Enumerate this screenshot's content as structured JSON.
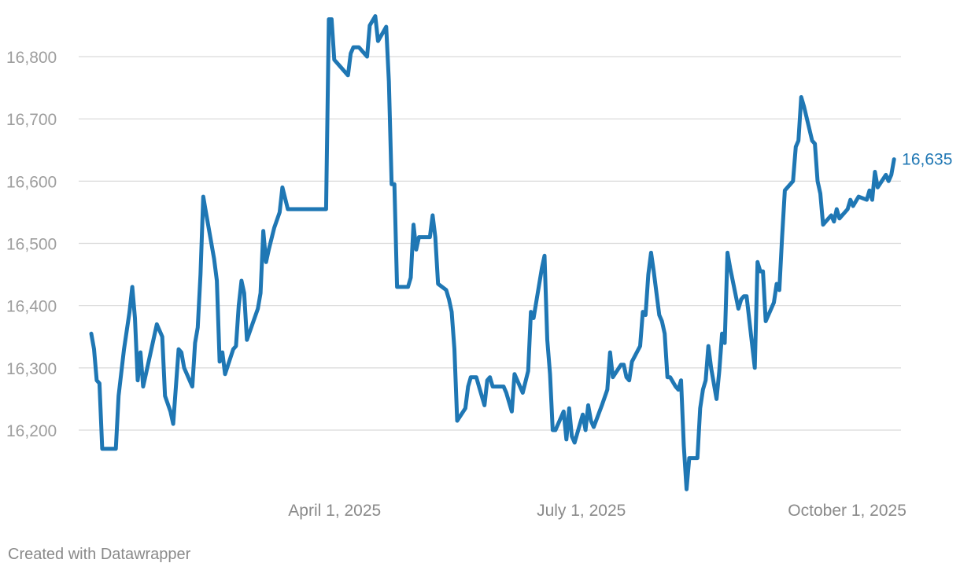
{
  "chart_data": {
    "type": "line",
    "title": "",
    "xlabel": "",
    "ylabel": "",
    "ylim": [
      16100,
      16870
    ],
    "xlim": [
      0,
      305
    ],
    "grid": true,
    "color": "#1f77b4",
    "y_ticks": [
      {
        "value": 16200,
        "label": "16,200"
      },
      {
        "value": 16300,
        "label": "16,300"
      },
      {
        "value": 16400,
        "label": "16,400"
      },
      {
        "value": 16500,
        "label": "16,500"
      },
      {
        "value": 16600,
        "label": "16,600"
      },
      {
        "value": 16700,
        "label": "16,700"
      },
      {
        "value": 16800,
        "label": "16,800"
      }
    ],
    "x_ticks": [
      {
        "value": 90,
        "label": "April 1, 2025"
      },
      {
        "value": 181,
        "label": "July 1, 2025"
      },
      {
        "value": 273,
        "label": "October 1, 2025"
      }
    ],
    "end_label": "16,635",
    "series": [
      {
        "points": [
          [
            0,
            16355
          ],
          [
            1,
            16330
          ],
          [
            2,
            16280
          ],
          [
            3,
            16275
          ],
          [
            4,
            16170
          ],
          [
            6,
            16170
          ],
          [
            7,
            16170
          ],
          [
            9,
            16170
          ],
          [
            10,
            16255
          ],
          [
            12,
            16330
          ],
          [
            14,
            16390
          ],
          [
            15,
            16430
          ],
          [
            16,
            16380
          ],
          [
            17,
            16280
          ],
          [
            18,
            16325
          ],
          [
            19,
            16270
          ],
          [
            21,
            16310
          ],
          [
            23,
            16350
          ],
          [
            24,
            16370
          ],
          [
            26,
            16350
          ],
          [
            27,
            16255
          ],
          [
            29,
            16230
          ],
          [
            30,
            16210
          ],
          [
            32,
            16330
          ],
          [
            33,
            16325
          ],
          [
            34,
            16300
          ],
          [
            37,
            16270
          ],
          [
            38,
            16340
          ],
          [
            39,
            16365
          ],
          [
            40,
            16450
          ],
          [
            41,
            16575
          ],
          [
            42,
            16550
          ],
          [
            45,
            16475
          ],
          [
            46,
            16440
          ],
          [
            47,
            16310
          ],
          [
            48,
            16325
          ],
          [
            49,
            16290
          ],
          [
            52,
            16330
          ],
          [
            53,
            16335
          ],
          [
            54,
            16400
          ],
          [
            55,
            16440
          ],
          [
            56,
            16420
          ],
          [
            57,
            16345
          ],
          [
            59,
            16370
          ],
          [
            61,
            16395
          ],
          [
            62,
            16420
          ],
          [
            63,
            16520
          ],
          [
            64,
            16470
          ],
          [
            65,
            16490
          ],
          [
            67,
            16525
          ],
          [
            69,
            16550
          ],
          [
            70,
            16590
          ],
          [
            72,
            16555
          ],
          [
            75,
            16555
          ],
          [
            80,
            16555
          ],
          [
            85,
            16555
          ],
          [
            86,
            16555
          ],
          [
            87,
            16860
          ],
          [
            88,
            16860
          ],
          [
            89,
            16795
          ],
          [
            92,
            16780
          ],
          [
            94,
            16770
          ],
          [
            95,
            16805
          ],
          [
            96,
            16815
          ],
          [
            98,
            16815
          ],
          [
            100,
            16805
          ],
          [
            101,
            16800
          ],
          [
            102,
            16850
          ],
          [
            104,
            16865
          ],
          [
            105,
            16825
          ],
          [
            107,
            16840
          ],
          [
            108,
            16848
          ],
          [
            109,
            16760
          ],
          [
            110,
            16595
          ],
          [
            111,
            16595
          ],
          [
            112,
            16430
          ],
          [
            116,
            16430
          ],
          [
            117,
            16445
          ],
          [
            118,
            16530
          ],
          [
            119,
            16490
          ],
          [
            120,
            16510
          ],
          [
            124,
            16510
          ],
          [
            125,
            16545
          ],
          [
            126,
            16510
          ],
          [
            127,
            16435
          ],
          [
            130,
            16425
          ],
          [
            131,
            16410
          ],
          [
            132,
            16390
          ],
          [
            133,
            16330
          ],
          [
            134,
            16215
          ],
          [
            137,
            16235
          ],
          [
            138,
            16270
          ],
          [
            139,
            16285
          ],
          [
            141,
            16285
          ],
          [
            142,
            16270
          ],
          [
            144,
            16240
          ],
          [
            145,
            16280
          ],
          [
            146,
            16285
          ],
          [
            147,
            16270
          ],
          [
            150,
            16270
          ],
          [
            151,
            16270
          ],
          [
            152,
            16260
          ],
          [
            154,
            16230
          ],
          [
            155,
            16290
          ],
          [
            158,
            16260
          ],
          [
            160,
            16295
          ],
          [
            161,
            16390
          ],
          [
            162,
            16380
          ],
          [
            165,
            16460
          ],
          [
            166,
            16480
          ],
          [
            167,
            16345
          ],
          [
            168,
            16290
          ],
          [
            169,
            16200
          ],
          [
            170,
            16200
          ],
          [
            173,
            16230
          ],
          [
            174,
            16185
          ],
          [
            175,
            16235
          ],
          [
            176,
            16190
          ],
          [
            177,
            16180
          ],
          [
            179,
            16210
          ],
          [
            180,
            16225
          ],
          [
            181,
            16200
          ],
          [
            182,
            16240
          ],
          [
            183,
            16215
          ],
          [
            184,
            16205
          ],
          [
            187,
            16240
          ],
          [
            189,
            16265
          ],
          [
            190,
            16325
          ],
          [
            191,
            16285
          ],
          [
            194,
            16305
          ],
          [
            195,
            16305
          ],
          [
            196,
            16285
          ],
          [
            197,
            16280
          ],
          [
            198,
            16310
          ],
          [
            201,
            16335
          ],
          [
            202,
            16390
          ],
          [
            203,
            16385
          ],
          [
            204,
            16450
          ],
          [
            205,
            16485
          ],
          [
            206,
            16455
          ],
          [
            208,
            16385
          ],
          [
            209,
            16375
          ],
          [
            210,
            16355
          ],
          [
            211,
            16285
          ],
          [
            212,
            16285
          ],
          [
            214,
            16270
          ],
          [
            215,
            16265
          ],
          [
            216,
            16280
          ],
          [
            217,
            16175
          ],
          [
            218,
            16105
          ],
          [
            219,
            16155
          ],
          [
            222,
            16155
          ],
          [
            223,
            16235
          ],
          [
            224,
            16265
          ],
          [
            225,
            16280
          ],
          [
            226,
            16335
          ],
          [
            227,
            16300
          ],
          [
            229,
            16250
          ],
          [
            230,
            16295
          ],
          [
            231,
            16355
          ],
          [
            232,
            16340
          ],
          [
            233,
            16485
          ],
          [
            234,
            16460
          ],
          [
            237,
            16395
          ],
          [
            238,
            16410
          ],
          [
            239,
            16415
          ],
          [
            240,
            16415
          ],
          [
            243,
            16300
          ],
          [
            244,
            16470
          ],
          [
            245,
            16455
          ],
          [
            246,
            16455
          ],
          [
            247,
            16375
          ],
          [
            250,
            16405
          ],
          [
            251,
            16435
          ],
          [
            252,
            16425
          ],
          [
            253,
            16510
          ],
          [
            254,
            16585
          ],
          [
            257,
            16600
          ],
          [
            258,
            16655
          ],
          [
            259,
            16665
          ],
          [
            260,
            16735
          ],
          [
            261,
            16720
          ],
          [
            264,
            16665
          ],
          [
            265,
            16660
          ],
          [
            266,
            16600
          ],
          [
            267,
            16580
          ],
          [
            268,
            16530
          ],
          [
            269,
            16535
          ],
          [
            271,
            16545
          ],
          [
            272,
            16535
          ],
          [
            273,
            16555
          ],
          [
            274,
            16540
          ],
          [
            277,
            16555
          ],
          [
            278,
            16570
          ],
          [
            279,
            16560
          ],
          [
            281,
            16575
          ],
          [
            284,
            16570
          ],
          [
            285,
            16585
          ],
          [
            286,
            16570
          ],
          [
            287,
            16615
          ],
          [
            288,
            16590
          ],
          [
            291,
            16610
          ],
          [
            292,
            16600
          ],
          [
            293,
            16610
          ],
          [
            294,
            16635
          ]
        ]
      }
    ]
  },
  "credit": "Created with Datawrapper"
}
